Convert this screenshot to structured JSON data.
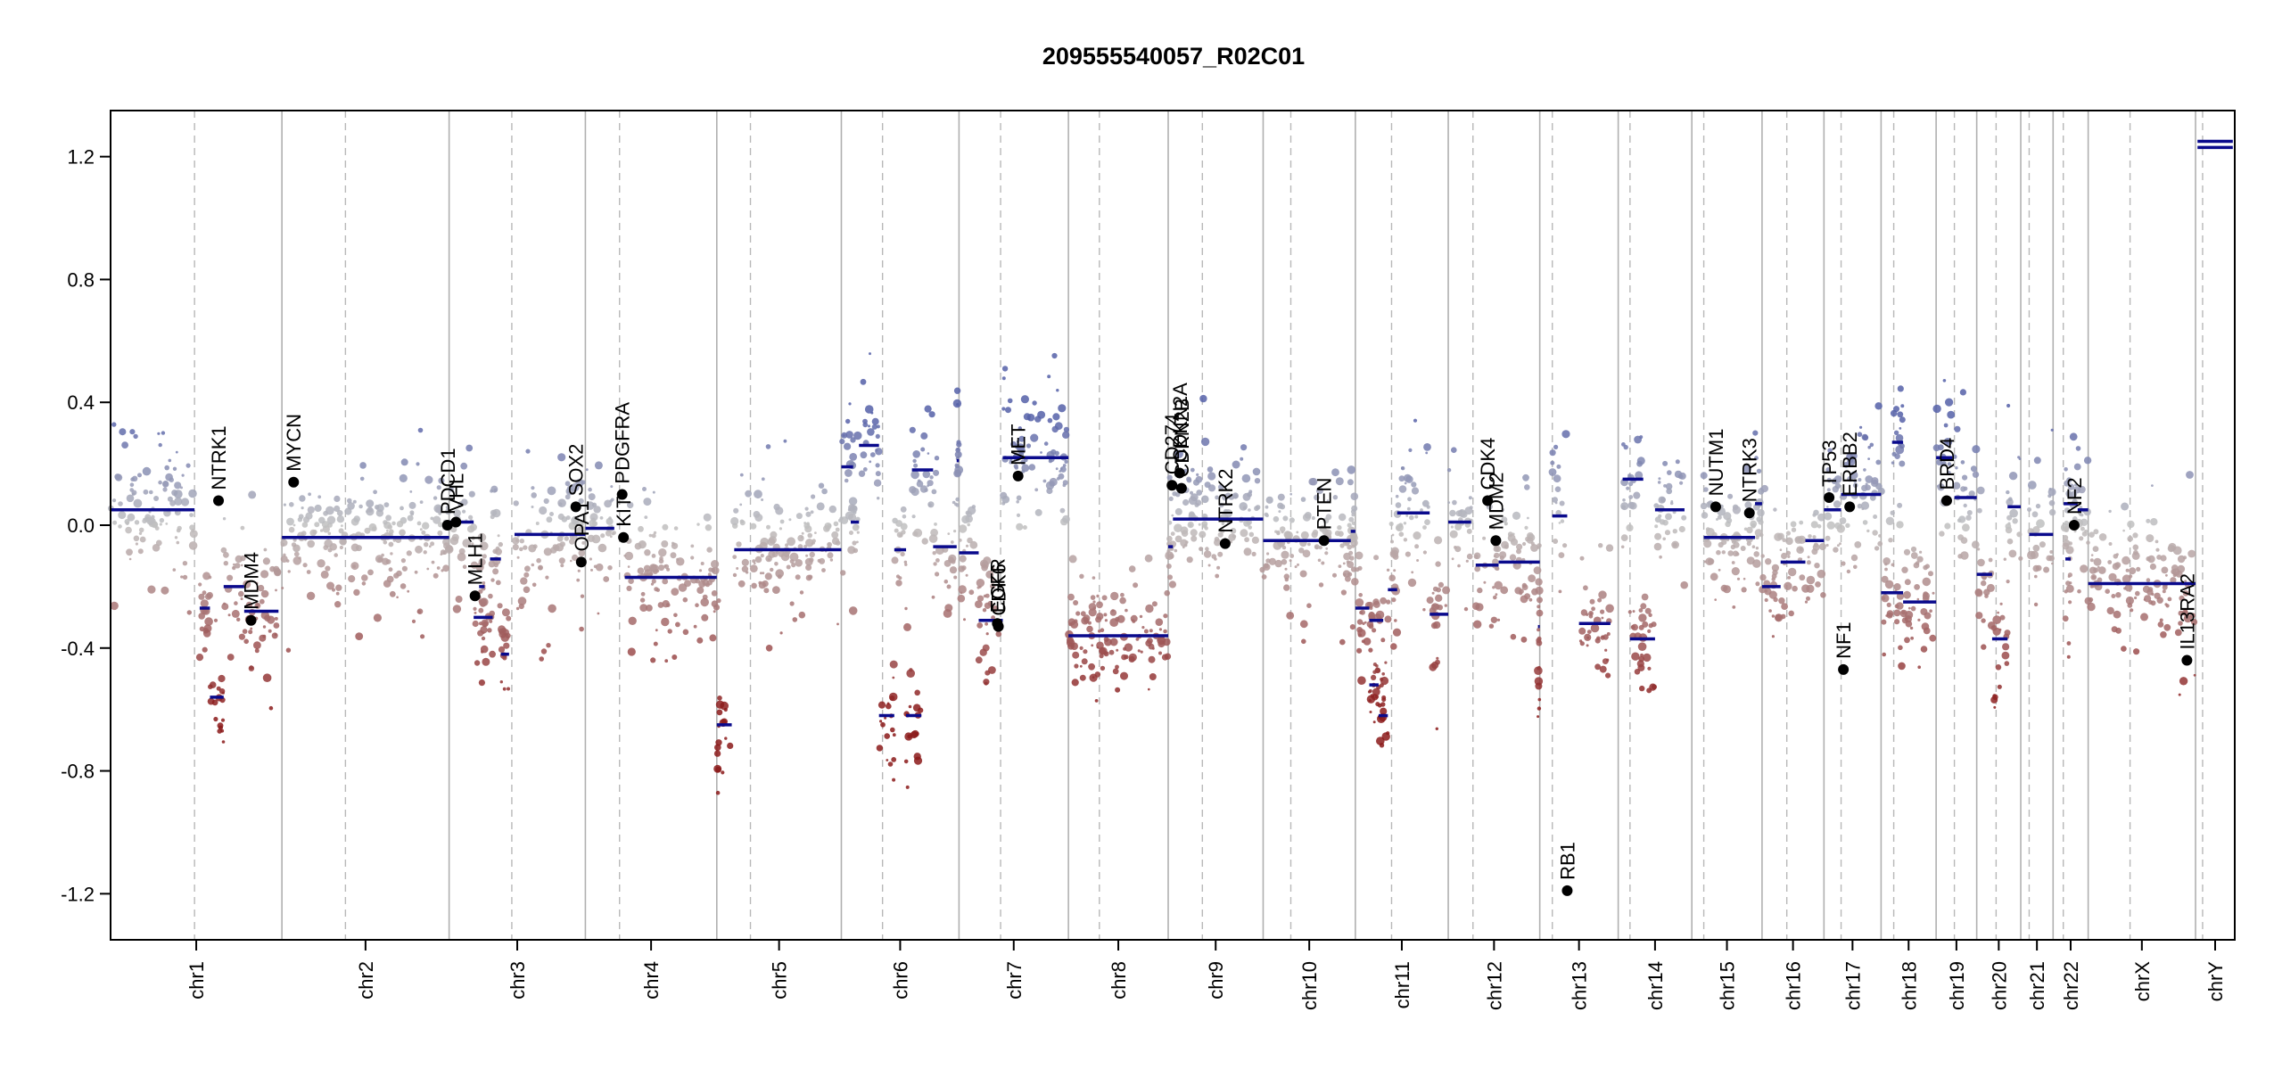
{
  "chart_data": {
    "type": "scatter",
    "title": "209555540057_R02C01",
    "xlabel": "",
    "ylabel": "",
    "ylim": [
      -1.35,
      1.35
    ],
    "yticks": [
      1.2,
      0.8,
      0.4,
      0.0,
      -0.4,
      -0.8,
      -1.2
    ],
    "ytick_labels": [
      "1.2",
      "0.8",
      "0.4",
      "0.0",
      "-0.4",
      "-0.8",
      "-1.2"
    ],
    "chromosomes": [
      {
        "name": "chr1",
        "len": 249,
        "centro": 0.49
      },
      {
        "name": "chr2",
        "len": 243,
        "centro": 0.38
      },
      {
        "name": "chr3",
        "len": 198,
        "centro": 0.46
      },
      {
        "name": "chr4",
        "len": 191,
        "centro": 0.26
      },
      {
        "name": "chr5",
        "len": 181,
        "centro": 0.27
      },
      {
        "name": "chr6",
        "len": 171,
        "centro": 0.35
      },
      {
        "name": "chr7",
        "len": 159,
        "centro": 0.38
      },
      {
        "name": "chr8",
        "len": 145,
        "centro": 0.31
      },
      {
        "name": "chr9",
        "len": 138,
        "centro": 0.36
      },
      {
        "name": "chr10",
        "len": 134,
        "centro": 0.3
      },
      {
        "name": "chr11",
        "len": 135,
        "centro": 0.39
      },
      {
        "name": "chr12",
        "len": 133,
        "centro": 0.27
      },
      {
        "name": "chr13",
        "len": 114,
        "centro": 0.16
      },
      {
        "name": "chr14",
        "len": 107,
        "centro": 0.16
      },
      {
        "name": "chr15",
        "len": 102,
        "centro": 0.17
      },
      {
        "name": "chr16",
        "len": 90,
        "centro": 0.4
      },
      {
        "name": "chr17",
        "len": 83,
        "centro": 0.3
      },
      {
        "name": "chr18",
        "len": 80,
        "centro": 0.23
      },
      {
        "name": "chr19",
        "len": 59,
        "centro": 0.45
      },
      {
        "name": "chr20",
        "len": 64,
        "centro": 0.44
      },
      {
        "name": "chr21",
        "len": 47,
        "centro": 0.26
      },
      {
        "name": "chr22",
        "len": 51,
        "centro": 0.29
      },
      {
        "name": "chrX",
        "len": 156,
        "centro": 0.39
      },
      {
        "name": "chrY",
        "len": 57,
        "centro": 0.18
      }
    ],
    "segments": [
      {
        "chr": "chr1",
        "start": 0,
        "end": 0.49,
        "value": 0.05
      },
      {
        "chr": "chr1",
        "start": 0.52,
        "end": 0.58,
        "value": -0.27
      },
      {
        "chr": "chr1",
        "start": 0.58,
        "end": 0.66,
        "value": -0.56
      },
      {
        "chr": "chr1",
        "start": 0.66,
        "end": 0.78,
        "value": -0.2
      },
      {
        "chr": "chr1",
        "start": 0.78,
        "end": 0.98,
        "value": -0.28
      },
      {
        "chr": "chr2",
        "start": 0,
        "end": 1.0,
        "value": -0.04
      },
      {
        "chr": "chr3",
        "start": 0,
        "end": 0.18,
        "value": 0.01
      },
      {
        "chr": "chr3",
        "start": 0.18,
        "end": 0.32,
        "value": -0.3
      },
      {
        "chr": "chr3",
        "start": 0.22,
        "end": 0.26,
        "value": -0.2
      },
      {
        "chr": "chr3",
        "start": 0.3,
        "end": 0.38,
        "value": -0.11
      },
      {
        "chr": "chr3",
        "start": 0.38,
        "end": 0.44,
        "value": -0.42
      },
      {
        "chr": "chr3",
        "start": 0.48,
        "end": 1.0,
        "value": -0.03
      },
      {
        "chr": "chr4",
        "start": 0,
        "end": 0.22,
        "value": -0.01
      },
      {
        "chr": "chr4",
        "start": 0.3,
        "end": 1.0,
        "value": -0.17
      },
      {
        "chr": "chr5",
        "start": 0,
        "end": 0.12,
        "value": -0.65
      },
      {
        "chr": "chr5",
        "start": 0.14,
        "end": 1.0,
        "value": -0.08
      },
      {
        "chr": "chr6",
        "start": 0,
        "end": 0.1,
        "value": 0.19
      },
      {
        "chr": "chr6",
        "start": 0.08,
        "end": 0.15,
        "value": 0.01
      },
      {
        "chr": "chr6",
        "start": 0.15,
        "end": 0.32,
        "value": 0.26
      },
      {
        "chr": "chr6",
        "start": 0.32,
        "end": 0.45,
        "value": -0.62
      },
      {
        "chr": "chr6",
        "start": 0.45,
        "end": 0.55,
        "value": -0.08
      },
      {
        "chr": "chr6",
        "start": 0.55,
        "end": 0.68,
        "value": -0.62
      },
      {
        "chr": "chr6",
        "start": 0.6,
        "end": 0.78,
        "value": 0.18
      },
      {
        "chr": "chr6",
        "start": 0.78,
        "end": 0.98,
        "value": -0.07
      },
      {
        "chr": "chr6",
        "start": 0.98,
        "end": 1.0,
        "value": 0.21
      },
      {
        "chr": "chr7",
        "start": 0,
        "end": 0.18,
        "value": -0.09
      },
      {
        "chr": "chr7",
        "start": 0.18,
        "end": 0.4,
        "value": -0.31
      },
      {
        "chr": "chr7",
        "start": 0.4,
        "end": 1.0,
        "value": 0.22
      },
      {
        "chr": "chr8",
        "start": 0,
        "end": 1.0,
        "value": -0.36
      },
      {
        "chr": "chr9",
        "start": 0,
        "end": 0.05,
        "value": -0.07
      },
      {
        "chr": "chr9",
        "start": 0.05,
        "end": 1.0,
        "value": 0.02
      },
      {
        "chr": "chr10",
        "start": 0,
        "end": 0.95,
        "value": -0.05
      },
      {
        "chr": "chr10",
        "start": 0.95,
        "end": 1.0,
        "value": -0.02
      },
      {
        "chr": "chr11",
        "start": 0,
        "end": 0.15,
        "value": -0.27
      },
      {
        "chr": "chr11",
        "start": 0.15,
        "end": 0.3,
        "value": -0.31
      },
      {
        "chr": "chr11",
        "start": 0.35,
        "end": 0.45,
        "value": -0.21
      },
      {
        "chr": "chr11",
        "start": 0.45,
        "end": 0.8,
        "value": 0.04
      },
      {
        "chr": "chr11",
        "start": 0.15,
        "end": 0.25,
        "value": -0.52
      },
      {
        "chr": "chr11",
        "start": 0.25,
        "end": 0.35,
        "value": -0.62
      },
      {
        "chr": "chr11",
        "start": 0.8,
        "end": 1.0,
        "value": -0.29
      },
      {
        "chr": "chr12",
        "start": 0,
        "end": 0.25,
        "value": 0.01
      },
      {
        "chr": "chr12",
        "start": 0.3,
        "end": 0.55,
        "value": -0.13
      },
      {
        "chr": "chr12",
        "start": 0.55,
        "end": 1.0,
        "value": -0.12
      },
      {
        "chr": "chr12",
        "start": 0.98,
        "end": 1.0,
        "value": -0.33
      },
      {
        "chr": "chr13",
        "start": 0.16,
        "end": 0.35,
        "value": 0.03
      },
      {
        "chr": "chr13",
        "start": 0.5,
        "end": 0.9,
        "value": -0.32
      },
      {
        "chr": "chr14",
        "start": 0.16,
        "end": 0.5,
        "value": -0.37
      },
      {
        "chr": "chr14",
        "start": 0.5,
        "end": 0.9,
        "value": 0.05
      },
      {
        "chr": "chr14",
        "start": 0.06,
        "end": 0.34,
        "value": 0.15
      },
      {
        "chr": "chr15",
        "start": 0.17,
        "end": 0.9,
        "value": -0.04
      },
      {
        "chr": "chr15",
        "start": 0.9,
        "end": 1.0,
        "value": 0.07
      },
      {
        "chr": "chr16",
        "start": 0,
        "end": 0.3,
        "value": -0.2
      },
      {
        "chr": "chr16",
        "start": 0.3,
        "end": 0.7,
        "value": -0.12
      },
      {
        "chr": "chr16",
        "start": 0.7,
        "end": 1.0,
        "value": -0.05
      },
      {
        "chr": "chr17",
        "start": 0,
        "end": 0.3,
        "value": 0.05
      },
      {
        "chr": "chr17",
        "start": 0.3,
        "end": 1.0,
        "value": 0.1
      },
      {
        "chr": "chr18",
        "start": 0,
        "end": 0.4,
        "value": -0.22
      },
      {
        "chr": "chr18",
        "start": 0.4,
        "end": 1.0,
        "value": -0.25
      },
      {
        "chr": "chr18",
        "start": 0.2,
        "end": 0.4,
        "value": 0.27
      },
      {
        "chr": "chr19",
        "start": 0,
        "end": 0.4,
        "value": 0.22
      },
      {
        "chr": "chr19",
        "start": 0.45,
        "end": 1.0,
        "value": 0.09
      },
      {
        "chr": "chr20",
        "start": 0,
        "end": 0.35,
        "value": -0.16
      },
      {
        "chr": "chr20",
        "start": 0.35,
        "end": 0.7,
        "value": -0.37
      },
      {
        "chr": "chr20",
        "start": 0.7,
        "end": 1.0,
        "value": 0.06
      },
      {
        "chr": "chr21",
        "start": 0.26,
        "end": 1.0,
        "value": -0.03
      },
      {
        "chr": "chr22",
        "start": 0.3,
        "end": 0.7,
        "value": 0.07
      },
      {
        "chr": "chr22",
        "start": 0.7,
        "end": 1.0,
        "value": 0.05
      },
      {
        "chr": "chr22",
        "start": 0.35,
        "end": 0.5,
        "value": -0.11
      },
      {
        "chr": "chrX",
        "start": 0,
        "end": 1.0,
        "value": -0.19
      },
      {
        "chr": "chrY",
        "start": 0.05,
        "end": 0.95,
        "value": 1.23
      },
      {
        "chr": "chrY",
        "start": 0.05,
        "end": 0.95,
        "value": 1.25
      }
    ],
    "genes": [
      {
        "name": "NTRK1",
        "chr": "chr1",
        "pos": 0.63,
        "value": 0.08
      },
      {
        "name": "MDM4",
        "chr": "chr1",
        "pos": 0.82,
        "value": -0.31
      },
      {
        "name": "MYCN",
        "chr": "chr2",
        "pos": 0.07,
        "value": 0.14
      },
      {
        "name": "PDCD1",
        "chr": "chr2",
        "pos": 0.99,
        "value": 0.0
      },
      {
        "name": "VHL",
        "chr": "chr3",
        "pos": 0.05,
        "value": 0.01
      },
      {
        "name": "MLH1",
        "chr": "chr3",
        "pos": 0.19,
        "value": -0.23
      },
      {
        "name": "SOX2",
        "chr": "chr3",
        "pos": 0.93,
        "value": 0.06
      },
      {
        "name": "OPA1",
        "chr": "chr3",
        "pos": 0.97,
        "value": -0.12
      },
      {
        "name": "PDGFRA",
        "chr": "chr4",
        "pos": 0.28,
        "value": 0.1
      },
      {
        "name": "KIT",
        "chr": "chr4",
        "pos": 0.29,
        "value": -0.04
      },
      {
        "name": "MET",
        "chr": "chr7",
        "pos": 0.54,
        "value": 0.16
      },
      {
        "name": "EGFR",
        "chr": "chr7",
        "pos": 0.35,
        "value": -0.32
      },
      {
        "name": "CDK6",
        "chr": "chr7",
        "pos": 0.36,
        "value": -0.33
      },
      {
        "name": "CD274",
        "chr": "chr9",
        "pos": 0.04,
        "value": 0.13
      },
      {
        "name": "CDKN2A",
        "chr": "chr9",
        "pos": 0.12,
        "value": 0.17
      },
      {
        "name": "CDKN2B",
        "chr": "chr9",
        "pos": 0.14,
        "value": 0.12
      },
      {
        "name": "NTRK2",
        "chr": "chr9",
        "pos": 0.6,
        "value": -0.06
      },
      {
        "name": "PTEN",
        "chr": "chr10",
        "pos": 0.66,
        "value": -0.05
      },
      {
        "name": "CDK4",
        "chr": "chr12",
        "pos": 0.43,
        "value": 0.08
      },
      {
        "name": "MDM2",
        "chr": "chr12",
        "pos": 0.52,
        "value": -0.05
      },
      {
        "name": "RB1",
        "chr": "chr13",
        "pos": 0.35,
        "value": -1.19
      },
      {
        "name": "NUTM1",
        "chr": "chr15",
        "pos": 0.34,
        "value": 0.06
      },
      {
        "name": "NTRK3",
        "chr": "chr15",
        "pos": 0.82,
        "value": 0.04
      },
      {
        "name": "TP53",
        "chr": "chr17",
        "pos": 0.09,
        "value": 0.09
      },
      {
        "name": "NF1",
        "chr": "chr17",
        "pos": 0.34,
        "value": -0.47
      },
      {
        "name": "ERBB2",
        "chr": "chr17",
        "pos": 0.45,
        "value": 0.06
      },
      {
        "name": "BRD4",
        "chr": "chr19",
        "pos": 0.26,
        "value": 0.08
      },
      {
        "name": "NF2",
        "chr": "chr22",
        "pos": 0.6,
        "value": 0.0
      },
      {
        "name": "IL13RA2",
        "chr": "chrX",
        "pos": 0.92,
        "value": -0.44
      }
    ],
    "colors": {
      "gain": "#5560a8",
      "neutral": "#c0c0c0",
      "loss": "#8b1a1a",
      "segment": "#0a0a8c",
      "gene_point": "#000000",
      "chrom_separator": "#b0b0b0",
      "centromere": "#b8b8b8"
    },
    "grid": false,
    "legend": "none"
  }
}
